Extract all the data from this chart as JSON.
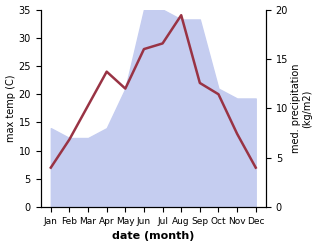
{
  "months": [
    "Jan",
    "Feb",
    "Mar",
    "Apr",
    "May",
    "Jun",
    "Jul",
    "Aug",
    "Sep",
    "Oct",
    "Nov",
    "Dec"
  ],
  "temp_C": [
    7,
    12,
    18,
    24,
    21,
    28,
    29,
    34,
    22,
    20,
    13,
    7
  ],
  "precip_mm": [
    8,
    7,
    7,
    8,
    12,
    20,
    20,
    19,
    19,
    12,
    11,
    11
  ],
  "temp_color": "#993344",
  "precip_fill_color": "#c5cdf0",
  "xlabel": "date (month)",
  "ylabel_left": "max temp (C)",
  "ylabel_right": "med. precipitation\n(kg/m2)",
  "ylim_left": [
    0,
    35
  ],
  "ylim_right": [
    0,
    20
  ],
  "yticks_left": [
    0,
    5,
    10,
    15,
    20,
    25,
    30,
    35
  ],
  "yticks_right": [
    0,
    5,
    10,
    15,
    20
  ],
  "figsize": [
    3.18,
    2.47
  ],
  "dpi": 100
}
